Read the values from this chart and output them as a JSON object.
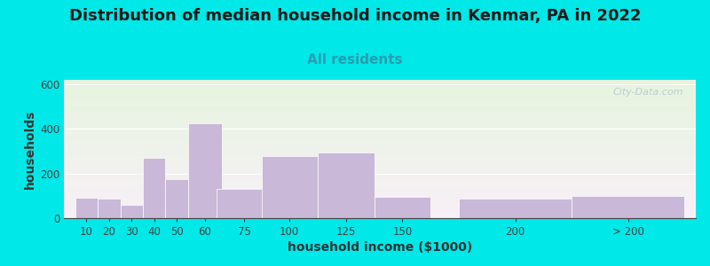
{
  "title": "Distribution of median household income in Kenmar, PA in 2022",
  "subtitle": "All residents",
  "xlabel": "household income ($1000)",
  "ylabel": "households",
  "bar_labels": [
    "10",
    "20",
    "30",
    "40",
    "50",
    "60",
    "75",
    "100",
    "125",
    "150",
    "200",
    "> 200"
  ],
  "bar_values": [
    90,
    88,
    60,
    270,
    175,
    425,
    130,
    280,
    295,
    95,
    88,
    100
  ],
  "bar_color": "#c9b8d8",
  "ylim": [
    0,
    620
  ],
  "yticks": [
    0,
    200,
    400,
    600
  ],
  "background_top_color": "#e6f5de",
  "background_bottom_color": "#f8f0f8",
  "outer_bg_color": "#00e8e8",
  "title_fontsize": 13,
  "subtitle_fontsize": 11,
  "subtitle_color": "#2a9db0",
  "axis_label_fontsize": 10,
  "tick_fontsize": 8.5,
  "watermark_text": "City-Data.com",
  "watermark_color": "#b8c8d0",
  "bar_widths": [
    10,
    10,
    10,
    10,
    10,
    15,
    25,
    25,
    25,
    25,
    50,
    50
  ],
  "bar_lefts": [
    5,
    15,
    25,
    35,
    45,
    55,
    67.5,
    87.5,
    112.5,
    137.5,
    175,
    225
  ],
  "xlim": [
    0,
    280
  ]
}
